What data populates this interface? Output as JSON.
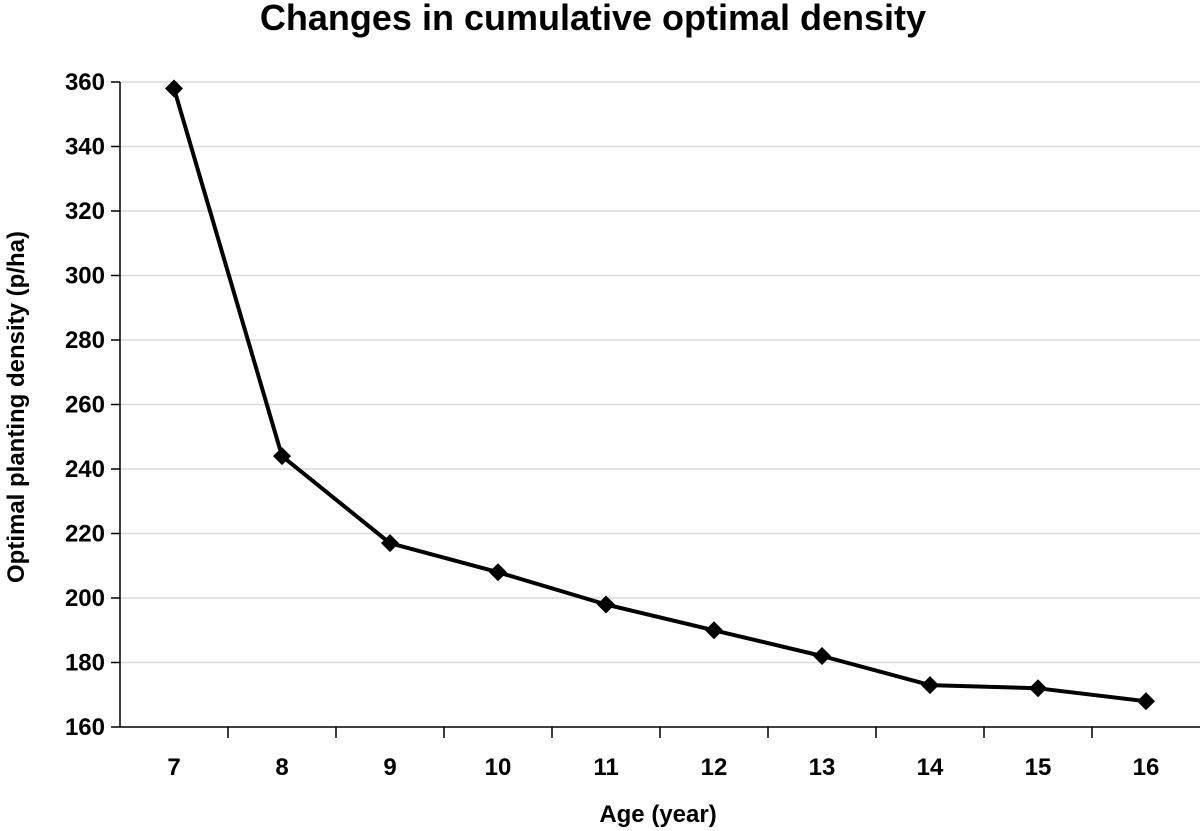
{
  "chart_data": {
    "type": "line",
    "title": "Changes in cumulative optimal density",
    "xlabel": "Age (year)",
    "ylabel": "Optimal planting density (p/ha)",
    "x": [
      7,
      8,
      9,
      10,
      11,
      12,
      13,
      14,
      15,
      16
    ],
    "series": [
      {
        "values": [
          358,
          244,
          217,
          208,
          198,
          190,
          182,
          173,
          172,
          168
        ]
      }
    ],
    "ylim": [
      160,
      360
    ],
    "yticks": [
      160,
      180,
      200,
      220,
      240,
      260,
      280,
      300,
      320,
      340,
      360
    ],
    "grid": true,
    "legend": "none",
    "marker": "diamond",
    "colors": {
      "line": "#000000",
      "grid": "#d9d9d9",
      "axis": "#000000"
    }
  }
}
